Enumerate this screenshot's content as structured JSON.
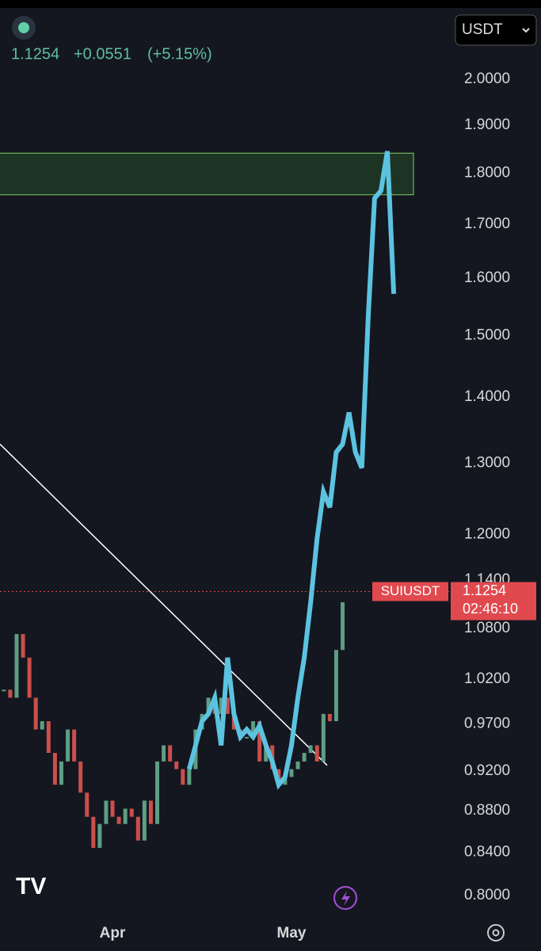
{
  "chart_data": {
    "type": "candlestick",
    "symbol": "SUIUSDT",
    "quote_currency": "USDT",
    "last_price": 1.1254,
    "change": "+0.0551",
    "change_percent": "(+5.15%)",
    "countdown": "02:46:10",
    "log": true,
    "grid": false,
    "ylim": [
      0.779,
      2.167
    ],
    "yticks": [
      {
        "value": 2.0,
        "label": "2.0000"
      },
      {
        "value": 1.9,
        "label": "1.9000"
      },
      {
        "value": 1.8,
        "label": "1.8000"
      },
      {
        "value": 1.7,
        "label": "1.7000"
      },
      {
        "value": 1.6,
        "label": "1.6000"
      },
      {
        "value": 1.5,
        "label": "1.5000"
      },
      {
        "value": 1.4,
        "label": "1.4000"
      },
      {
        "value": 1.3,
        "label": "1.3000"
      },
      {
        "value": 1.2,
        "label": "1.2000"
      },
      {
        "value": 1.14,
        "label": "1.1400"
      },
      {
        "value": 1.08,
        "label": "1.0800"
      },
      {
        "value": 1.02,
        "label": "1.0200"
      },
      {
        "value": 0.97,
        "label": "0.9700"
      },
      {
        "value": 0.92,
        "label": "0.9200"
      },
      {
        "value": 0.88,
        "label": "0.8800"
      },
      {
        "value": 0.84,
        "label": "0.8400"
      },
      {
        "value": 0.8,
        "label": "0.8000"
      }
    ],
    "categories": [
      null,
      null,
      null,
      null,
      null,
      null,
      null,
      null,
      null,
      null,
      null,
      null,
      null,
      null,
      null,
      null,
      null,
      "Apr",
      null,
      null,
      null,
      null,
      null,
      null,
      null,
      null,
      null,
      null,
      null,
      null,
      null,
      null,
      null,
      null,
      null,
      null,
      null,
      null,
      null,
      null,
      null,
      null,
      null,
      null,
      null,
      "May",
      null,
      null,
      null,
      null,
      null,
      null,
      null,
      null,
      null,
      null,
      null,
      null,
      null,
      null,
      null,
      null
    ],
    "series": [
      {
        "name": "close",
        "up_color": "#5e9e84",
        "down_color": "#c9504c",
        "values": [
          1.008,
          0.999,
          1.073,
          1.045,
          0.999,
          0.964,
          0.973,
          0.939,
          0.906,
          0.93,
          0.964,
          0.93,
          0.898,
          0.874,
          0.844,
          0.867,
          0.89,
          0.874,
          0.867,
          0.882,
          0.874,
          0.851,
          0.89,
          0.867,
          0.93,
          0.947,
          0.93,
          0.922,
          0.906,
          0.922,
          0.964,
          0.981,
          0.999,
          0.981,
          0.999,
          0.981,
          0.964,
          0.956,
          0.956,
          0.973,
          0.93,
          0.947,
          0.922,
          0.906,
          0.914,
          0.922,
          0.93,
          0.939,
          0.947,
          0.93,
          0.981,
          0.973,
          1.054,
          1.112,
          null,
          null,
          null,
          null,
          null,
          null,
          null,
          null
        ]
      },
      {
        "name": "projection",
        "color": "#5bc3e0",
        "values": [
          null,
          null,
          null,
          null,
          null,
          null,
          null,
          null,
          null,
          null,
          null,
          null,
          null,
          null,
          null,
          null,
          null,
          null,
          null,
          null,
          null,
          null,
          null,
          null,
          null,
          null,
          null,
          null,
          null,
          0.922,
          0.947,
          0.973,
          0.981,
          0.999,
          0.947,
          1.045,
          0.981,
          0.956,
          0.964,
          0.956,
          0.968,
          0.947,
          0.93,
          0.906,
          0.914,
          0.947,
          0.999,
          1.045,
          1.112,
          1.194,
          1.259,
          1.237,
          1.316,
          1.328,
          1.376,
          1.316,
          1.293,
          1.531,
          1.75,
          1.765,
          1.845,
          1.572
        ]
      }
    ],
    "zone": {
      "low": 1.757,
      "high": 1.841,
      "color": "#1f3a26"
    },
    "trendline": [
      1.328,
      0.926
    ]
  }
}
